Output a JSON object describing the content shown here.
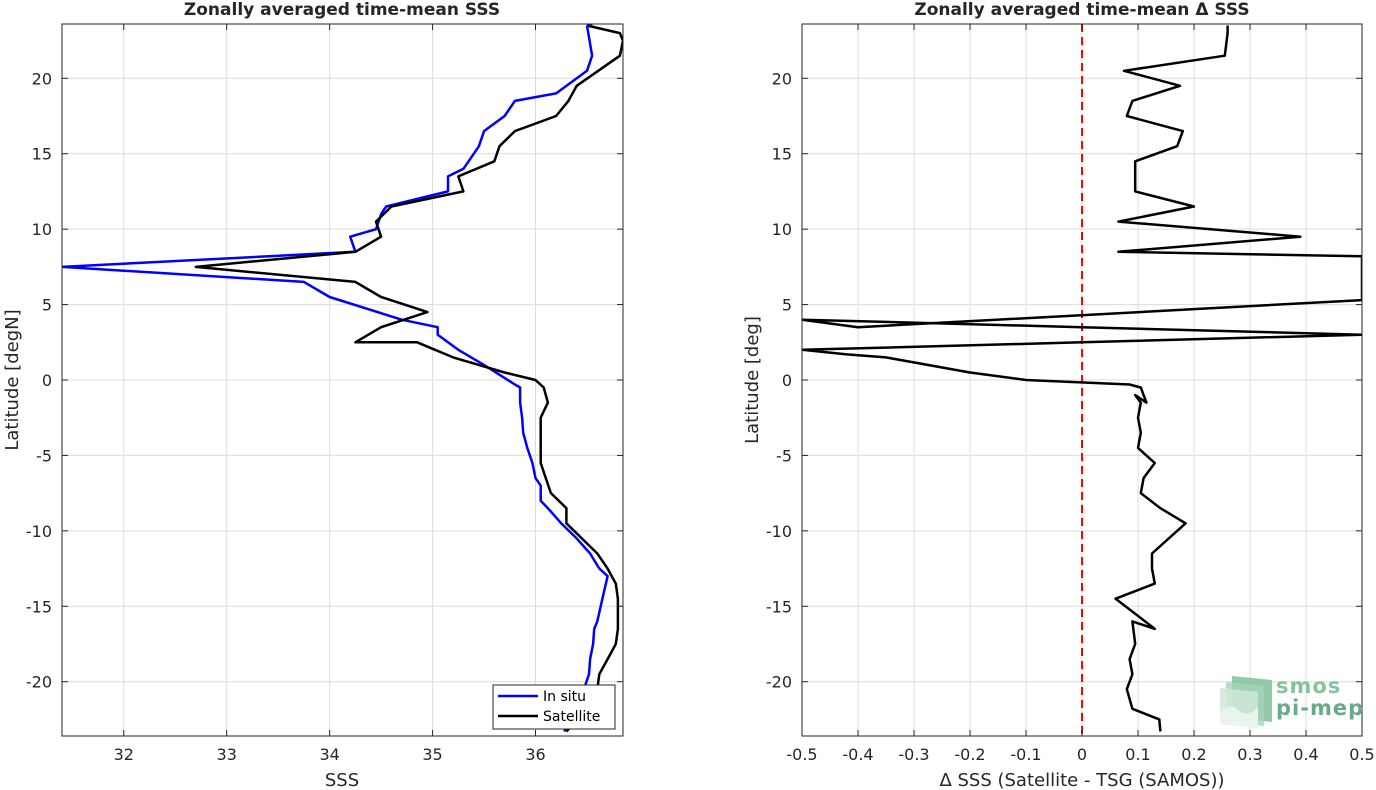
{
  "chart_data": [
    {
      "type": "line",
      "title": "Zonally averaged time-mean SSS",
      "xlabel": "SSS",
      "ylabel": "Latitude [degN]",
      "xlim": [
        31.4,
        36.85
      ],
      "ylim": [
        -23.6,
        23.6
      ],
      "xticks": [
        32,
        33,
        34,
        35,
        36
      ],
      "yticks": [
        -20,
        -15,
        -10,
        -5,
        0,
        5,
        10,
        15,
        20
      ],
      "grid": true,
      "legend_position": "bottom-right",
      "series": [
        {
          "name": "In situ",
          "color": "#0000ff",
          "x": [
            36.28,
            36.4,
            36.47,
            36.52,
            36.53,
            36.56,
            36.57,
            36.6,
            36.65,
            36.7,
            36.62,
            36.53,
            36.4,
            36.25,
            36.12,
            36.05,
            36.05,
            36.0,
            35.97,
            35.92,
            35.88,
            35.87,
            35.85,
            35.85,
            35.8,
            35.5,
            35.25,
            35.05,
            35.05,
            34.7,
            34.0,
            33.75,
            31.4,
            34.25,
            34.2,
            34.45,
            34.5,
            34.55,
            35.15,
            35.15,
            35.3,
            35.35,
            35.45,
            35.5,
            35.7,
            35.8,
            36.2,
            36.5,
            36.55,
            36.5
          ],
          "y": [
            -23.3,
            -21.5,
            -20.5,
            -19.5,
            -18.5,
            -17.5,
            -16.5,
            -16.0,
            -14.5,
            -13.0,
            -12.5,
            -11.5,
            -10.5,
            -9.5,
            -8.5,
            -8.0,
            -7.0,
            -6.5,
            -5.5,
            -4.5,
            -3.5,
            -2.5,
            -1.5,
            -0.5,
            -0.3,
            1.0,
            2.0,
            3.0,
            3.5,
            4.0,
            5.5,
            6.5,
            7.5,
            8.5,
            9.5,
            10.0,
            11.0,
            11.5,
            12.5,
            13.5,
            14.0,
            14.5,
            15.5,
            16.5,
            17.5,
            18.5,
            19.0,
            20.5,
            21.5,
            23.5
          ]
        },
        {
          "name": "Satellite",
          "color": "#000000",
          "x": [
            36.3,
            36.55,
            36.6,
            36.62,
            36.7,
            36.78,
            36.8,
            36.8,
            36.78,
            36.7,
            36.6,
            36.45,
            36.3,
            36.3,
            36.15,
            36.1,
            36.05,
            36.05,
            36.05,
            36.05,
            36.12,
            36.08,
            36.0,
            35.7,
            35.2,
            34.85,
            34.25,
            34.5,
            34.95,
            34.5,
            34.25,
            32.7,
            34.25,
            34.5,
            34.45,
            34.6,
            35.3,
            35.25,
            35.6,
            35.65,
            35.8,
            36.2,
            36.32,
            36.4,
            36.82,
            36.85,
            36.82,
            36.5
          ],
          "y": [
            -23.3,
            -21.5,
            -20.5,
            -19.5,
            -18.5,
            -17.5,
            -16.5,
            -14.5,
            -13.5,
            -12.5,
            -11.5,
            -10.5,
            -9.5,
            -8.5,
            -7.5,
            -6.5,
            -5.5,
            -4.5,
            -3.5,
            -2.5,
            -1.5,
            -0.5,
            0.0,
            0.5,
            1.5,
            2.5,
            2.5,
            3.5,
            4.5,
            5.5,
            6.5,
            7.5,
            8.5,
            9.5,
            10.5,
            11.5,
            12.5,
            13.5,
            14.5,
            15.5,
            16.5,
            17.5,
            18.5,
            19.5,
            21.5,
            22.5,
            23.0,
            23.5
          ]
        },
        {
          "color": "#0000ff",
          "x": [
            36.5,
            36.55
          ],
          "y": [
            23.5,
            23.6
          ]
        }
      ]
    },
    {
      "type": "line",
      "title": "Zonally averaged time-mean Δ SSS",
      "xlabel": "Δ SSS (Satellite - TSG (SAMOS))",
      "ylabel": "Latitude [deg]",
      "xlim": [
        -0.5,
        0.5
      ],
      "ylim": [
        -23.6,
        23.6
      ],
      "xticks": [
        -0.5,
        -0.4,
        -0.3,
        -0.2,
        -0.1,
        0,
        0.1,
        0.2,
        0.3,
        0.4,
        0.5
      ],
      "yticks": [
        -20,
        -15,
        -10,
        -5,
        0,
        5,
        10,
        15,
        20
      ],
      "grid": true,
      "reference_line": {
        "x": 0,
        "color": "#ff0000",
        "style": "dashed"
      },
      "series": [
        {
          "color": "#000000",
          "x": [
            0.14,
            0.138,
            0.09,
            0.08,
            0.09,
            0.085,
            0.095,
            0.09,
            0.13,
            0.095,
            0.06,
            0.13,
            0.125,
            0.125,
            0.185,
            0.14,
            0.105,
            0.11,
            0.13,
            0.1,
            0.105,
            0.1,
            0.105,
            0.095,
            0.115,
            0.105,
            0.085,
            -0.1,
            -0.2,
            -0.35,
            -0.42,
            -0.5,
            0.0,
            0.5,
            0.0,
            -0.5,
            -0.4,
            0.5,
            0.5,
            0.065,
            0.39,
            0.065,
            0.2,
            0.095,
            0.095,
            0.095,
            0.17,
            0.18,
            0.08,
            0.09,
            0.175,
            0.075,
            0.255,
            0.26,
            0.26
          ],
          "y": [
            -23.3,
            -22.5,
            -21.8,
            -20.5,
            -19.5,
            -18.5,
            -17.5,
            -16.0,
            -16.5,
            -15.5,
            -14.5,
            -13.5,
            -12.5,
            -11.5,
            -9.5,
            -8.5,
            -7.5,
            -6.5,
            -5.5,
            -4.5,
            -3.5,
            -2.5,
            -1.5,
            -1.0,
            -1.5,
            -0.5,
            -0.3,
            0.0,
            0.5,
            1.5,
            1.7,
            2.0,
            2.5,
            3.0,
            3.5,
            4.0,
            3.5,
            5.3,
            8.2,
            8.5,
            9.5,
            10.5,
            11.5,
            12.5,
            13.5,
            14.5,
            15.5,
            16.5,
            17.5,
            18.5,
            19.5,
            20.5,
            21.5,
            23.0,
            23.5
          ]
        }
      ]
    }
  ],
  "logo": {
    "line1": "smos",
    "line2": "pi-mep"
  }
}
